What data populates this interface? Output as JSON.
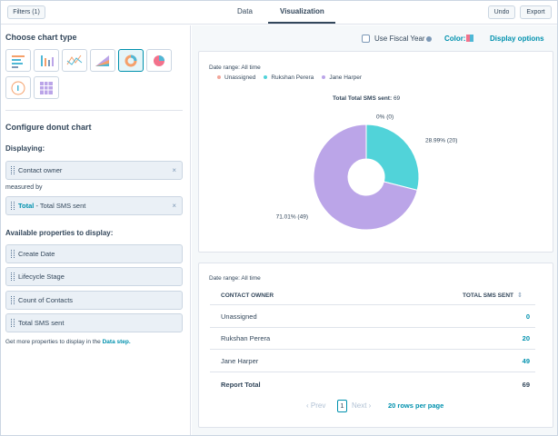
{
  "top_bar": {
    "filters_button": "Filters (1)",
    "tabs": [
      "Data",
      "Visualization"
    ],
    "undo": "Undo",
    "export": "Export"
  },
  "sidebar": {
    "chart_type_heading": "Choose chart type",
    "configure_heading": "Configure donut chart",
    "displaying_label": "Displaying:",
    "dimension": "Contact owner",
    "measured_by": "measured by",
    "measure_prefix": "Total",
    "measure_separator": "-",
    "measure": "Total SMS sent",
    "available_heading": "Available properties to display:",
    "properties": [
      "Create Date",
      "Lifecycle Stage",
      "Count of Contacts",
      "Total SMS sent"
    ],
    "more_text": "Get more properties to display in the",
    "more_link": "Data step."
  },
  "toolbar": {
    "fiscal_year": "Use Fiscal Year",
    "color": "Color:",
    "display_options": "Display options"
  },
  "chart_card": {
    "date_range": "Date range: All time"
  },
  "chart_data": {
    "type": "pie",
    "donut": true,
    "title": "Total Total SMS sent:",
    "total": 69,
    "categories": [
      "Unassigned",
      "Rukshan Perera",
      "Jane Harper"
    ],
    "colors": [
      "#f2a69a",
      "#51d3d9",
      "#bba5e8"
    ],
    "values": [
      0,
      20,
      49
    ],
    "value_labels": [
      "0% (0)",
      "28.99% (20)",
      "71.01% (49)"
    ]
  },
  "table": {
    "date_range": "Date range: All time",
    "columns": [
      "CONTACT OWNER",
      "TOTAL SMS SENT"
    ],
    "rows": [
      [
        "Unassigned",
        0
      ],
      [
        "Rukshan Perera",
        20
      ],
      [
        "Jane Harper",
        49
      ]
    ],
    "total_row": [
      "Report Total",
      69
    ]
  },
  "pagination": {
    "prev": "Prev",
    "page": 1,
    "next": "Next",
    "rows_per_page": "20 rows per page"
  }
}
